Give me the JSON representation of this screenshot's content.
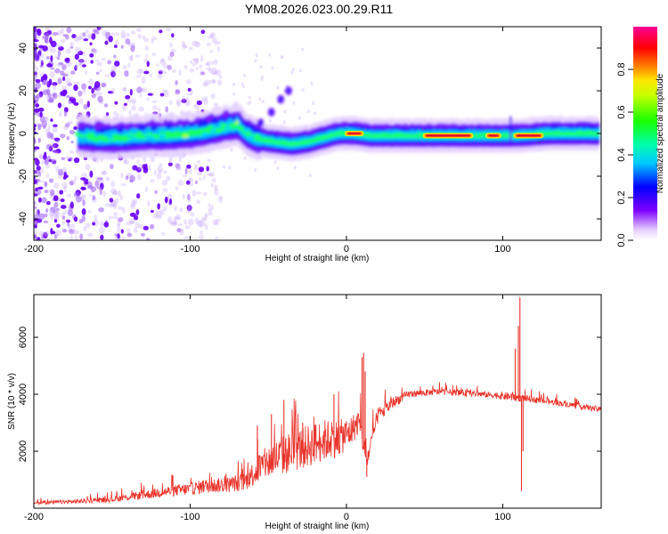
{
  "title": "YM08.2026.023.00.29.R11",
  "chart_data": [
    {
      "type": "heatmap",
      "name": "spectrogram",
      "xlabel": "Height of straight line (km)",
      "ylabel": "Frequency (Hz)",
      "xlim": [
        -200,
        163
      ],
      "ylim": [
        -50,
        50
      ],
      "xticks": [
        -200,
        -100,
        0,
        100
      ],
      "yticks": [
        -40,
        -20,
        0,
        20,
        40
      ],
      "colorbar": {
        "label": "Normalized spectral amplitude",
        "range": [
          0,
          1
        ],
        "ticks": [
          0.0,
          0.2,
          0.4,
          0.6,
          0.8
        ],
        "colormap": "rainbow: white, violet, blue, cyan, green, yellow, orange, red, magenta"
      },
      "ridge": [
        {
          "x": -172,
          "y": -1
        },
        {
          "x": -160,
          "y": -2
        },
        {
          "x": -145,
          "y": -2
        },
        {
          "x": -130,
          "y": -1
        },
        {
          "x": -115,
          "y": -1
        },
        {
          "x": -100,
          "y": 0
        },
        {
          "x": -90,
          "y": 1
        },
        {
          "x": -78,
          "y": 3
        },
        {
          "x": -70,
          "y": 4
        },
        {
          "x": -62,
          "y": -1
        },
        {
          "x": -55,
          "y": -3
        },
        {
          "x": -45,
          "y": -4
        },
        {
          "x": -35,
          "y": -5
        },
        {
          "x": -25,
          "y": -4
        },
        {
          "x": -15,
          "y": -2
        },
        {
          "x": -5,
          "y": 0
        },
        {
          "x": 5,
          "y": 0
        },
        {
          "x": 15,
          "y": -1
        },
        {
          "x": 30,
          "y": -1
        },
        {
          "x": 60,
          "y": -1
        },
        {
          "x": 80,
          "y": -1
        },
        {
          "x": 100,
          "y": -1
        },
        {
          "x": 110,
          "y": -1
        },
        {
          "x": 130,
          "y": 0
        },
        {
          "x": 163,
          "y": 0
        }
      ],
      "side_branch": [
        {
          "x": -55,
          "y": 5
        },
        {
          "x": -48,
          "y": 10
        },
        {
          "x": -42,
          "y": 16
        },
        {
          "x": -37,
          "y": 20
        }
      ],
      "spike": {
        "x": 105,
        "y_min": -5,
        "y_max": 8
      },
      "peak_regions": [
        {
          "x_from": 0,
          "x_to": 10,
          "y": 0
        },
        {
          "x_from": 50,
          "x_to": 80,
          "y": -1
        },
        {
          "x_from": 90,
          "x_to": 98,
          "y": -1
        },
        {
          "x_from": 108,
          "x_to": 125,
          "y": -1
        }
      ],
      "noise_region": {
        "x_from": -200,
        "x_to": -80,
        "y_from": -50,
        "y_to": 50
      }
    },
    {
      "type": "line",
      "name": "snr",
      "xlabel": "Height of straight line (km)",
      "ylabel": "SNR (10 * v/v)",
      "xlim": [
        -200,
        163
      ],
      "ylim": [
        0,
        7500
      ],
      "xticks": [
        -200,
        -100,
        0,
        100
      ],
      "yticks": [
        2000,
        4000,
        6000
      ],
      "color": "#e8332a",
      "series": [
        {
          "name": "SNR",
          "points": [
            {
              "x": -200,
              "y": 180,
              "noise": 120
            },
            {
              "x": -175,
              "y": 220,
              "noise": 150
            },
            {
              "x": -150,
              "y": 300,
              "noise": 200
            },
            {
              "x": -130,
              "y": 450,
              "noise": 300
            },
            {
              "x": -110,
              "y": 600,
              "noise": 400
            },
            {
              "x": -100,
              "y": 650,
              "noise": 450
            },
            {
              "x": -90,
              "y": 750,
              "noise": 500
            },
            {
              "x": -75,
              "y": 800,
              "noise": 550
            },
            {
              "x": -65,
              "y": 900,
              "noise": 650
            },
            {
              "x": -55,
              "y": 1400,
              "noise": 1100
            },
            {
              "x": -45,
              "y": 1700,
              "noise": 1300
            },
            {
              "x": -35,
              "y": 1900,
              "noise": 1500
            },
            {
              "x": -25,
              "y": 2100,
              "noise": 1500
            },
            {
              "x": -15,
              "y": 2300,
              "noise": 1500
            },
            {
              "x": -5,
              "y": 2400,
              "noise": 1300
            },
            {
              "x": 2,
              "y": 2600,
              "noise": 1100
            },
            {
              "x": 8,
              "y": 3000,
              "noise": 900
            },
            {
              "x": 13,
              "y": 1600,
              "noise": 700
            },
            {
              "x": 20,
              "y": 3200,
              "noise": 600
            },
            {
              "x": 30,
              "y": 3700,
              "noise": 400
            },
            {
              "x": 40,
              "y": 4000,
              "noise": 250
            },
            {
              "x": 60,
              "y": 4080,
              "noise": 220
            },
            {
              "x": 80,
              "y": 4020,
              "noise": 220
            },
            {
              "x": 95,
              "y": 3950,
              "noise": 220
            },
            {
              "x": 105,
              "y": 3900,
              "noise": 300
            },
            {
              "x": 120,
              "y": 3800,
              "noise": 220
            },
            {
              "x": 140,
              "y": 3650,
              "noise": 200
            },
            {
              "x": 163,
              "y": 3450,
              "noise": 200
            }
          ],
          "spikes": [
            {
              "x": 10,
              "y": 5300
            },
            {
              "x": 11,
              "y": 5450
            },
            {
              "x": 12,
              "y": 4800
            },
            {
              "x": 13,
              "y": 1100
            },
            {
              "x": -57,
              "y": 2900
            },
            {
              "x": -48,
              "y": 3300
            },
            {
              "x": -40,
              "y": 3800
            },
            {
              "x": -28,
              "y": 3000
            },
            {
              "x": -8,
              "y": 4000
            },
            {
              "x": 108,
              "y": 5600
            },
            {
              "x": 110,
              "y": 6400
            },
            {
              "x": 111,
              "y": 7400
            },
            {
              "x": 112,
              "y": 600
            },
            {
              "x": 113,
              "y": 2000
            }
          ]
        }
      ]
    }
  ]
}
